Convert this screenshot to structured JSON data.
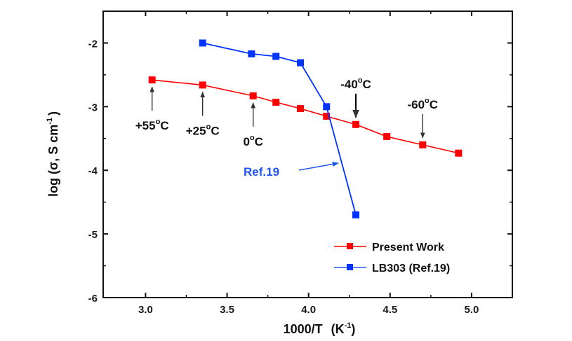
{
  "chart_data": {
    "type": "line",
    "title": "",
    "xlabel": "1000/T",
    "xlabel_unit": "(K",
    "xlabel_unit_sup": "-1",
    "xlabel_unit_close": ")",
    "ylabel": "log (σ, S cm",
    "ylabel_sup": "-1",
    "ylabel_close": ")",
    "xlim": [
      2.74,
      5.25
    ],
    "ylim": [
      -6,
      -1.5
    ],
    "xticks": [
      3.0,
      3.5,
      4.0,
      4.5,
      5.0
    ],
    "xtick_labels": [
      "3.0",
      "3.5",
      "4.0",
      "4.5",
      "5.0"
    ],
    "xminor": [
      3.25,
      3.75,
      4.25,
      4.75
    ],
    "yticks": [
      -6,
      -5,
      -4,
      -3,
      -2
    ],
    "ytick_labels": [
      "-6",
      "-5",
      "-4",
      "-3",
      "-2"
    ],
    "yminor": [
      -5.5,
      -4.5,
      -3.5,
      -2.5
    ],
    "grid": false,
    "legend_position": "bottom-right",
    "series": [
      {
        "name": "Present Work",
        "color": "#ff0000",
        "marker": "square",
        "x": [
          3.04,
          3.35,
          3.66,
          3.8,
          3.95,
          4.11,
          4.29,
          4.48,
          4.7,
          4.92
        ],
        "y": [
          -2.58,
          -2.66,
          -2.83,
          -2.93,
          -3.03,
          -3.15,
          -3.28,
          -3.47,
          -3.6,
          -3.73
        ]
      },
      {
        "name": "LB303 (Ref.19)",
        "color": "#0033ff",
        "marker": "square",
        "x": [
          3.35,
          3.65,
          3.8,
          3.95,
          4.11,
          4.29
        ],
        "y": [
          -2.0,
          -2.17,
          -2.21,
          -2.31,
          -3.0,
          -4.7
        ]
      }
    ],
    "annotations": [
      {
        "text": "+55",
        "unit": "C",
        "deg": "o",
        "arrow_to": [
          3.04,
          -2.58
        ],
        "direction": "up"
      },
      {
        "text": "+25",
        "unit": "C",
        "deg": "o",
        "arrow_to": [
          3.35,
          -2.66
        ],
        "direction": "up"
      },
      {
        "text": "0",
        "unit": "C",
        "deg": "o",
        "arrow_to": [
          3.66,
          -2.83
        ],
        "direction": "up"
      },
      {
        "text": "-40",
        "unit": "C",
        "deg": "o",
        "arrow_to": [
          4.29,
          -3.28
        ],
        "direction": "down"
      },
      {
        "text": "-60",
        "unit": "C",
        "deg": "o",
        "arrow_to": [
          4.7,
          -3.6
        ],
        "direction": "down"
      }
    ],
    "ref_label": {
      "text": "Ref.19",
      "color": "#2255ee",
      "points_to_series": "LB303 (Ref.19)"
    }
  }
}
